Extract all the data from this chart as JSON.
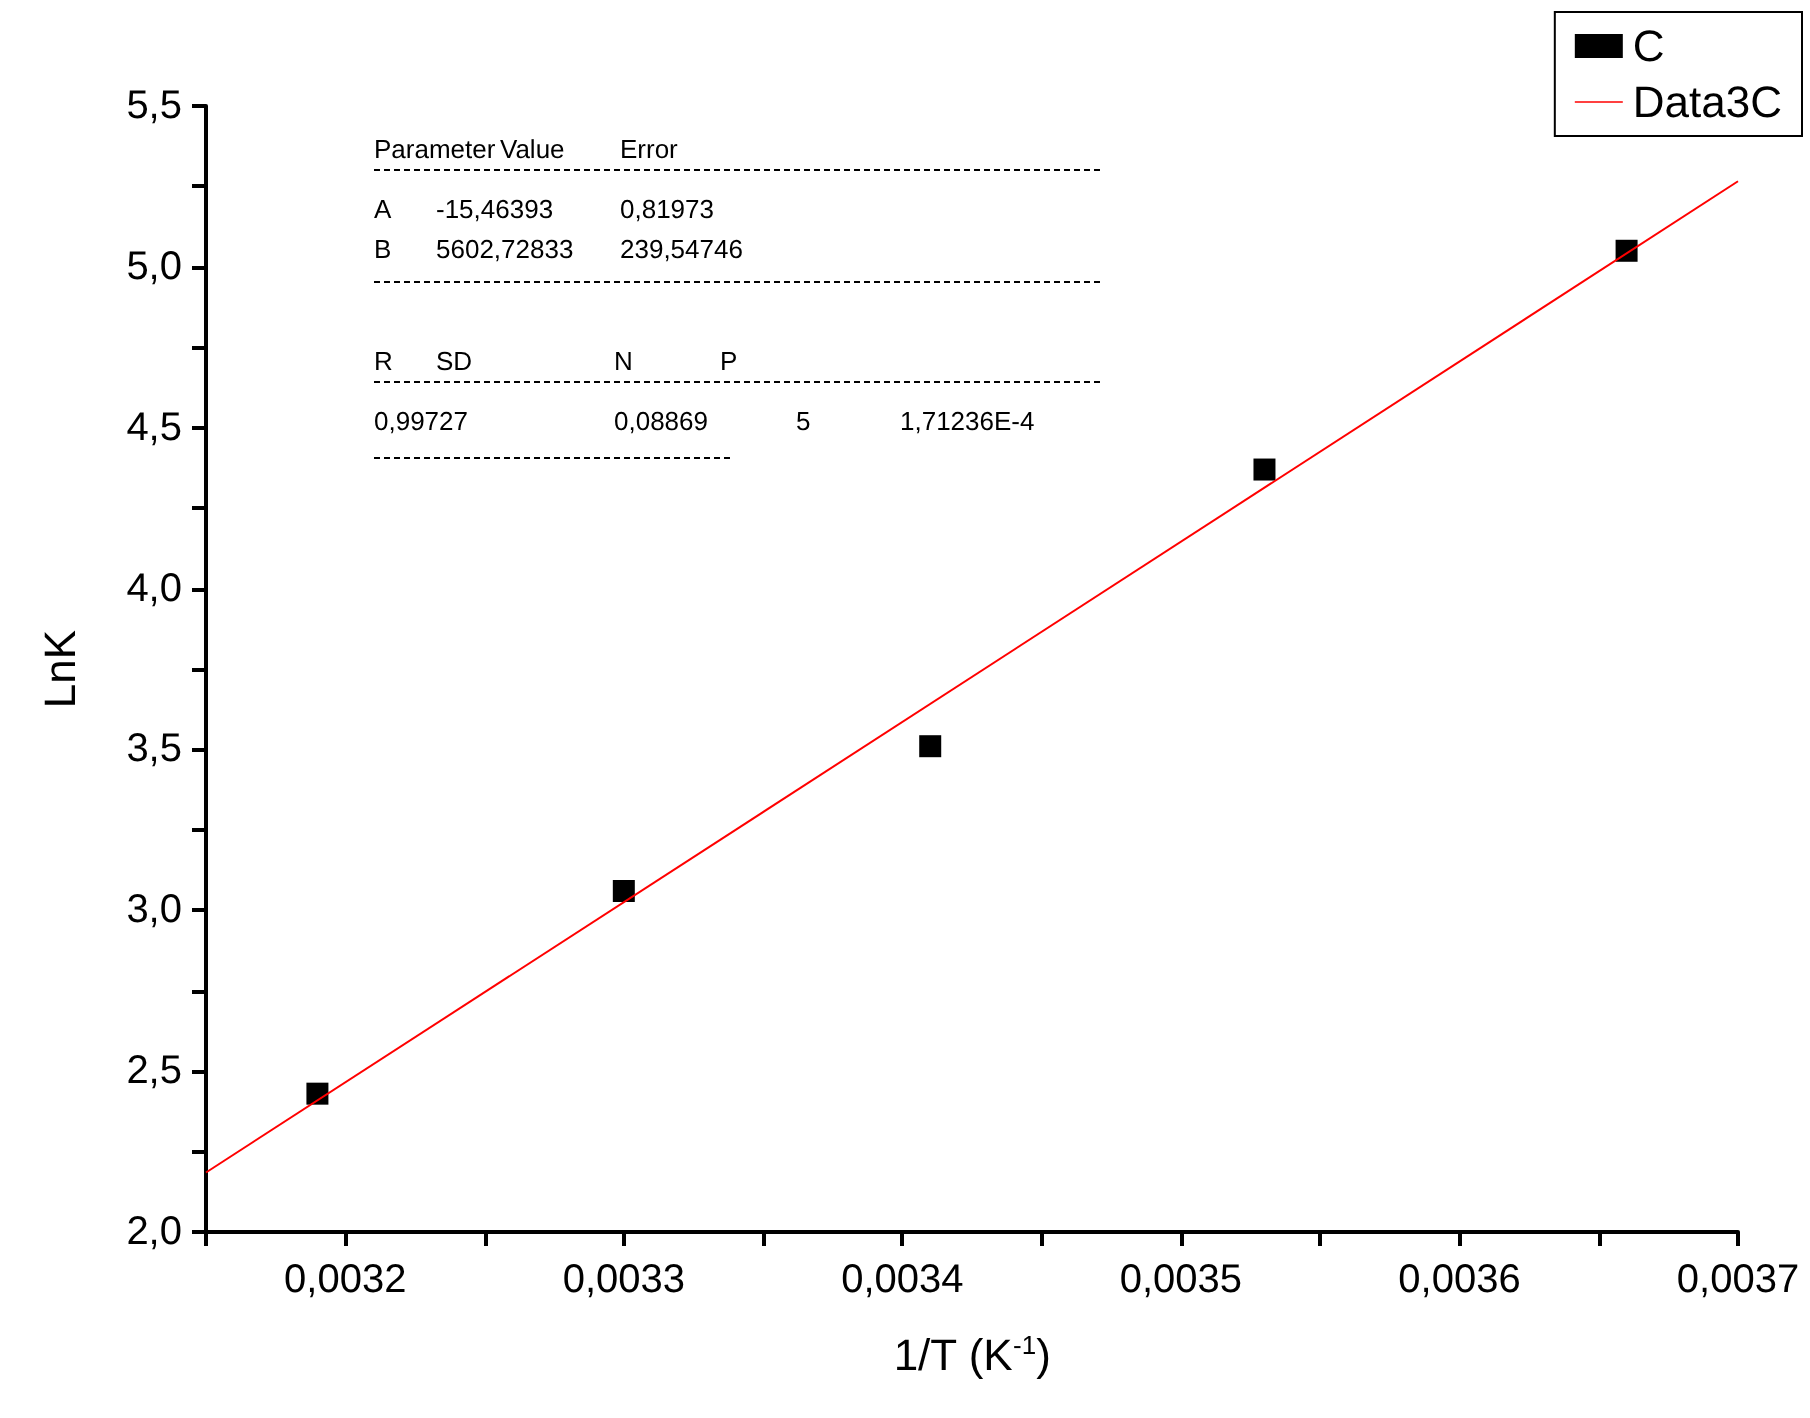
{
  "chart_data": {
    "type": "scatter",
    "xlabel": "1/T (K$^{-1}$)",
    "ylabel": "LnK",
    "xlim": [
      0.00315,
      0.0037
    ],
    "xticks": [
      {
        "value": 0.00315,
        "label": null
      },
      {
        "value": 0.0032,
        "label": "0,0032"
      },
      {
        "value": 0.00325,
        "label": null
      },
      {
        "value": 0.0033,
        "label": "0,0033"
      },
      {
        "value": 0.00335,
        "label": null
      },
      {
        "value": 0.0034,
        "label": "0,0034"
      },
      {
        "value": 0.00345,
        "label": null
      },
      {
        "value": 0.0035,
        "label": "0,0035"
      },
      {
        "value": 0.00355,
        "label": null
      },
      {
        "value": 0.0036,
        "label": "0,0036"
      },
      {
        "value": 0.00365,
        "label": null
      },
      {
        "value": 0.0037,
        "label": "0,0037"
      }
    ],
    "ylim": [
      2.0,
      5.5
    ],
    "yticks": [
      {
        "value": 2.0,
        "label": "2,0"
      },
      {
        "value": 2.25,
        "label": null
      },
      {
        "value": 2.5,
        "label": "2,5"
      },
      {
        "value": 2.75,
        "label": null
      },
      {
        "value": 3.0,
        "label": "3,0"
      },
      {
        "value": 3.25,
        "label": null
      },
      {
        "value": 3.5,
        "label": "3,5"
      },
      {
        "value": 3.75,
        "label": null
      },
      {
        "value": 4.0,
        "label": "4,0"
      },
      {
        "value": 4.25,
        "label": null
      },
      {
        "value": 4.5,
        "label": "4,5"
      },
      {
        "value": 4.75,
        "label": null
      },
      {
        "value": 5.0,
        "label": "5,0"
      },
      {
        "value": 5.25,
        "label": null
      },
      {
        "value": 5.5,
        "label": "5,5"
      }
    ],
    "series": [
      {
        "name": "C",
        "color": "#000000",
        "marker": "square",
        "x": [
          0.00319,
          0.0033,
          0.00341,
          0.00353,
          0.00366
        ],
        "values": [
          2.43,
          3.06,
          3.51,
          4.37,
          5.05
        ]
      },
      {
        "name": "Data3C",
        "type": "line",
        "color": "#ff0000",
        "marker": "none",
        "x": [
          0.00315,
          0.0037
        ],
        "values": [
          2.185,
          5.266
        ]
      }
    ],
    "legend": "top right",
    "grid": false,
    "annotations": [
      "Parameter",
      "Value",
      "Error",
      "A",
      "-15,46393",
      "0,81973",
      "B",
      "5602,72833",
      "239,54746",
      "R",
      "SD",
      "N",
      "P",
      "0,99727",
      "0,08869",
      "5",
      "1,71236E-4"
    ]
  }
}
